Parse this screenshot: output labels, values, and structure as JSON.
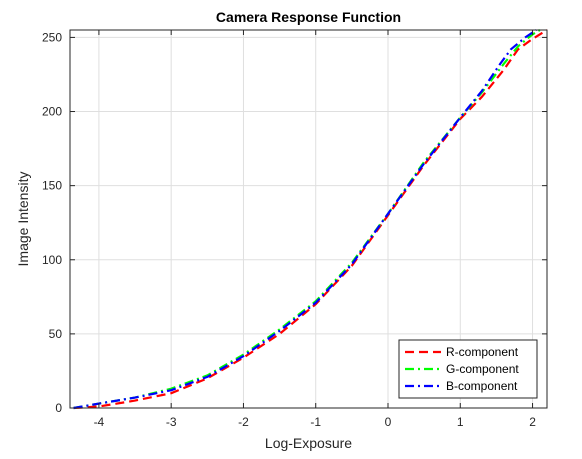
{
  "chart_data": {
    "type": "line",
    "title": "Camera Response Function",
    "xlabel": "Log-Exposure",
    "ylabel": "Image Intensity",
    "xlim": [
      -4.4,
      2.2
    ],
    "ylim": [
      0,
      255
    ],
    "xticks": [
      -4,
      -3,
      -2,
      -1,
      0,
      1,
      2
    ],
    "yticks": [
      0,
      50,
      100,
      150,
      200,
      250
    ],
    "grid": true,
    "legend_position": "bottom-right",
    "series": [
      {
        "name": "R-component",
        "color": "#ff0000",
        "style": "dashed",
        "points": [
          [
            -4.35,
            0
          ],
          [
            -4.0,
            1
          ],
          [
            -3.5,
            5
          ],
          [
            -3.0,
            10
          ],
          [
            -2.5,
            20
          ],
          [
            -2.0,
            34
          ],
          [
            -1.5,
            50
          ],
          [
            -1.0,
            70
          ],
          [
            -0.5,
            96
          ],
          [
            0.0,
            130
          ],
          [
            0.5,
            164
          ],
          [
            1.0,
            195
          ],
          [
            1.3,
            210
          ],
          [
            1.6,
            228
          ],
          [
            1.8,
            242
          ],
          [
            2.0,
            249
          ],
          [
            2.2,
            255
          ]
        ]
      },
      {
        "name": "G-component",
        "color": "#00ff00",
        "style": "dashdot",
        "points": [
          [
            -4.35,
            0
          ],
          [
            -4.0,
            3
          ],
          [
            -3.5,
            7
          ],
          [
            -3.0,
            13
          ],
          [
            -2.5,
            22
          ],
          [
            -2.0,
            36
          ],
          [
            -1.5,
            53
          ],
          [
            -1.0,
            72
          ],
          [
            -0.5,
            98
          ],
          [
            0.0,
            131
          ],
          [
            0.5,
            166
          ],
          [
            1.0,
            196
          ],
          [
            1.3,
            213
          ],
          [
            1.6,
            232
          ],
          [
            1.8,
            244
          ],
          [
            2.0,
            252
          ],
          [
            2.1,
            255
          ]
        ]
      },
      {
        "name": "B-component",
        "color": "#0000ff",
        "style": "dashdot",
        "points": [
          [
            -4.35,
            0
          ],
          [
            -4.0,
            3
          ],
          [
            -3.5,
            7
          ],
          [
            -3.0,
            12
          ],
          [
            -2.5,
            21
          ],
          [
            -2.0,
            35
          ],
          [
            -1.5,
            52
          ],
          [
            -1.0,
            71
          ],
          [
            -0.5,
            97
          ],
          [
            0.0,
            131
          ],
          [
            0.5,
            165
          ],
          [
            1.0,
            196
          ],
          [
            1.3,
            214
          ],
          [
            1.55,
            232
          ],
          [
            1.7,
            242
          ],
          [
            1.9,
            250
          ],
          [
            2.05,
            255
          ]
        ]
      }
    ]
  }
}
